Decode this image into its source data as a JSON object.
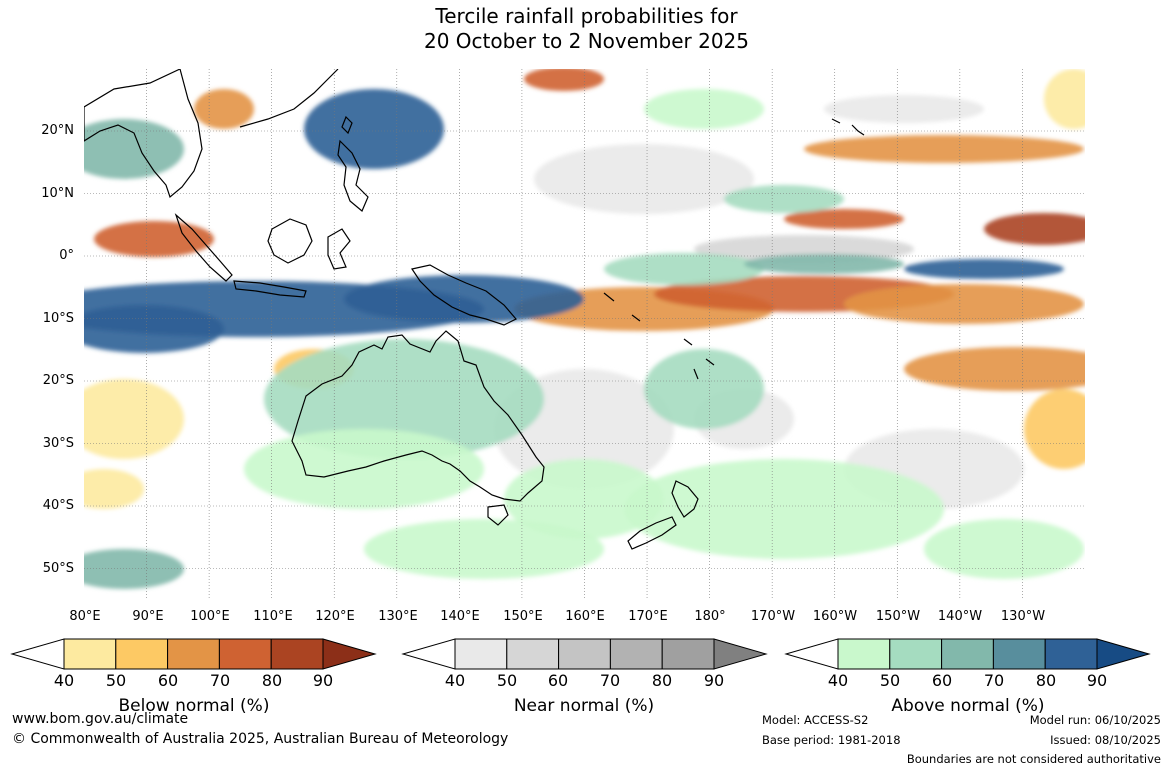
{
  "title_line1": "Tercile rainfall probabilities for",
  "title_line2": "20 October to 2 November 2025",
  "map": {
    "lat_labels": [
      "20°N",
      "10°N",
      "0°",
      "10°S",
      "20°S",
      "30°S",
      "40°S",
      "50°S"
    ],
    "lon_labels": [
      "80°E",
      "90°E",
      "100°E",
      "110°E",
      "120°E",
      "130°E",
      "140°E",
      "150°E",
      "160°E",
      "170°E",
      "180°",
      "170°W",
      "160°W",
      "150°W",
      "140°W",
      "130°W"
    ]
  },
  "legends": {
    "below": {
      "title": "Below normal (%)",
      "ticks": [
        "40",
        "50",
        "60",
        "70",
        "80",
        "90"
      ],
      "colors": [
        "#ffffff",
        "#fdeaa0",
        "#fdc964",
        "#e39446",
        "#cf6232",
        "#ab4422",
        "#8c2f18"
      ]
    },
    "near": {
      "title": "Near normal (%)",
      "ticks": [
        "40",
        "50",
        "60",
        "70",
        "80",
        "90"
      ],
      "colors": [
        "#ffffff",
        "#e9e9e9",
        "#d6d6d6",
        "#c4c4c4",
        "#b2b2b2",
        "#a0a0a0",
        "#808080"
      ]
    },
    "above": {
      "title": "Above normal (%)",
      "ticks": [
        "40",
        "50",
        "60",
        "70",
        "80",
        "90"
      ],
      "colors": [
        "#ffffff",
        "#c9f8cc",
        "#a5dcc0",
        "#82b8ab",
        "#588e9d",
        "#2f6196",
        "#174b84"
      ]
    }
  },
  "footer": {
    "website": "www.bom.gov.au/climate",
    "copyright": "© Commonwealth of Australia 2025, Australian Bureau of Meteorology",
    "model": "Model: ACCESS-S2",
    "base_period": "Base period: 1981-2018",
    "model_run": "Model run: 06/10/2025",
    "issued": "Issued: 08/10/2025",
    "boundaries": "Boundaries are not considered authoritative"
  }
}
